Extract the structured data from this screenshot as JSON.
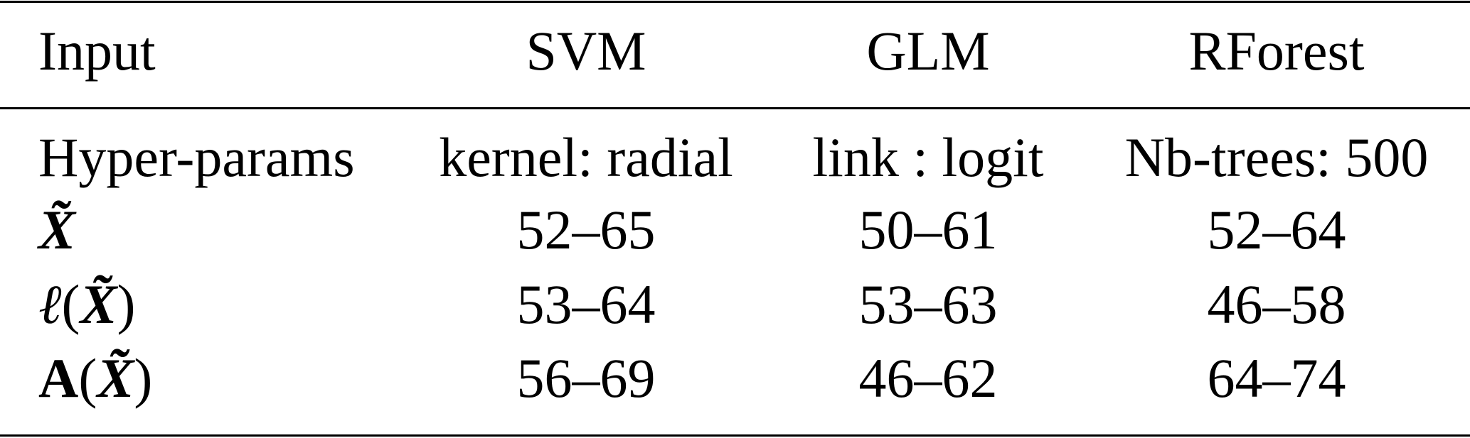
{
  "table": {
    "headers": [
      "Input",
      "SVM",
      "GLM",
      "RForest"
    ],
    "rows": [
      {
        "label": {
          "pre": "Hyper-params",
          "x": "",
          "post": ""
        },
        "cells": [
          "kernel: radial",
          "link : logit",
          "Nb-trees: 500"
        ]
      },
      {
        "label": {
          "pre": "",
          "x": "X̃",
          "post": ""
        },
        "cells": [
          "52–65",
          "50–61",
          "52–64"
        ]
      },
      {
        "label": {
          "pre": "ℓ(",
          "x": "X̃",
          "post": ")"
        },
        "cells": [
          "53–64",
          "53–63",
          "46–58"
        ]
      },
      {
        "label": {
          "pre": "A(",
          "x": "X̃",
          "post": ")"
        },
        "cells": [
          "56–69",
          "46–62",
          "64–74"
        ]
      }
    ]
  }
}
